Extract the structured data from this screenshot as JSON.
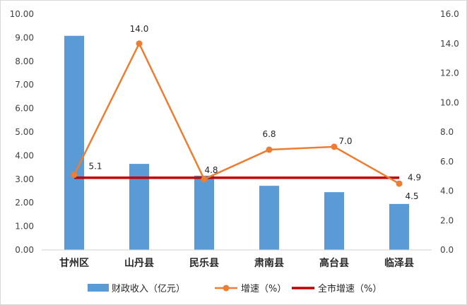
{
  "chart_data": {
    "type": "bar+line",
    "categories": [
      "甘州区",
      "山丹县",
      "民乐县",
      "肃南县",
      "高台县",
      "临泽县"
    ],
    "series": [
      {
        "name": "财政收入（亿元）",
        "type": "bar",
        "axis": "left",
        "color": "#5b9bd5",
        "values": [
          9.08,
          3.65,
          3.15,
          2.72,
          2.45,
          1.95
        ]
      },
      {
        "name": "增速（%）",
        "type": "line",
        "axis": "right",
        "color": "#ed7d31",
        "values": [
          5.1,
          14.0,
          4.8,
          6.8,
          7.0,
          4.5
        ],
        "labels": [
          "5.1",
          "14.0",
          "4.8",
          "6.8",
          "7.0",
          "4.5"
        ]
      },
      {
        "name": "全市增速（%）",
        "type": "line",
        "axis": "right",
        "color": "#c00000",
        "values": [
          4.9,
          4.9,
          4.9,
          4.9,
          4.9,
          4.9
        ],
        "end_label": "4.9"
      }
    ],
    "left_axis": {
      "ylim": [
        0,
        10
      ],
      "ticks": [
        "0.00",
        "1.00",
        "2.00",
        "3.00",
        "4.00",
        "5.00",
        "6.00",
        "7.00",
        "8.00",
        "9.00",
        "10.00"
      ]
    },
    "right_axis": {
      "ylim": [
        0,
        16
      ],
      "ticks": [
        "0.0",
        "2.0",
        "4.0",
        "6.0",
        "8.0",
        "10.0",
        "12.0",
        "14.0",
        "16.0"
      ]
    },
    "grid": false,
    "legend_position": "bottom"
  }
}
